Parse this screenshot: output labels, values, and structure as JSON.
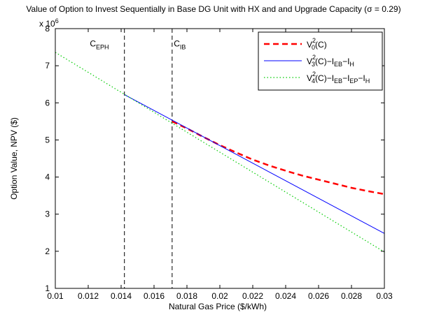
{
  "chart_data": {
    "type": "line",
    "title": "Value of Option to Invest Sequentially in Base DG Unit with HX and and Upgrade Capacity (σ = 0.29)",
    "xlabel": "Natural Gas Price ($/kWh)",
    "ylabel": "Option Value, NPV ($)",
    "y_exponent_label": "x 10",
    "y_exponent_power": "6",
    "xlim": [
      0.01,
      0.03
    ],
    "ylim": [
      1,
      8
    ],
    "xticks": [
      "0.01",
      "0.012",
      "0.014",
      "0.016",
      "0.018",
      "0.02",
      "0.022",
      "0.024",
      "0.026",
      "0.028",
      "0.03"
    ],
    "yticks": [
      "1",
      "2",
      "3",
      "4",
      "5",
      "6",
      "7",
      "8"
    ],
    "grid": false,
    "legend_position": "top-right",
    "series": [
      {
        "name": {
          "base": "V",
          "sup": "2",
          "parts": [
            {
              "t": "0",
              "s": "sub"
            },
            {
              "t": "(C)",
              "s": ""
            }
          ]
        },
        "color": "#ff0000",
        "style": "dashed",
        "x": [
          0.0171,
          0.018,
          0.019,
          0.02,
          0.021,
          0.022,
          0.023,
          0.024,
          0.025,
          0.026,
          0.027,
          0.028,
          0.029,
          0.03
        ],
        "y": [
          5.5,
          5.31,
          5.08,
          4.86,
          4.66,
          4.47,
          4.31,
          4.17,
          4.04,
          3.93,
          3.82,
          3.71,
          3.62,
          3.54
        ]
      },
      {
        "name": {
          "base": "V",
          "sup": "2",
          "parts": [
            {
              "t": "3",
              "s": "sub"
            },
            {
              "t": "(C)−I",
              "s": ""
            },
            {
              "t": "EB",
              "s": "sub"
            },
            {
              "t": "−I",
              "s": ""
            },
            {
              "t": "H",
              "s": "sub"
            }
          ]
        },
        "color": "#0000ff",
        "style": "solid",
        "x": [
          0.0142,
          0.03
        ],
        "y": [
          6.22,
          2.48
        ]
      },
      {
        "name": {
          "base": "V",
          "sup": "2",
          "parts": [
            {
              "t": "4",
              "s": "sub"
            },
            {
              "t": "(C)−I",
              "s": ""
            },
            {
              "t": "EB",
              "s": "sub"
            },
            {
              "t": "−I",
              "s": ""
            },
            {
              "t": "EP",
              "s": "sub"
            },
            {
              "t": "−I",
              "s": ""
            },
            {
              "t": "H",
              "s": "sub"
            }
          ]
        },
        "color": "#00cc00",
        "style": "dotted",
        "x": [
          0.01,
          0.03
        ],
        "y": [
          7.36,
          1.98
        ]
      }
    ],
    "annotations": [
      {
        "base": "C",
        "sub": "EPH",
        "x": 0.0142,
        "label_x": 0.0121,
        "label_y": 7.52
      },
      {
        "base": "C",
        "sub": "IB",
        "x": 0.0171,
        "label_x": 0.0172,
        "label_y": 7.52
      }
    ]
  }
}
